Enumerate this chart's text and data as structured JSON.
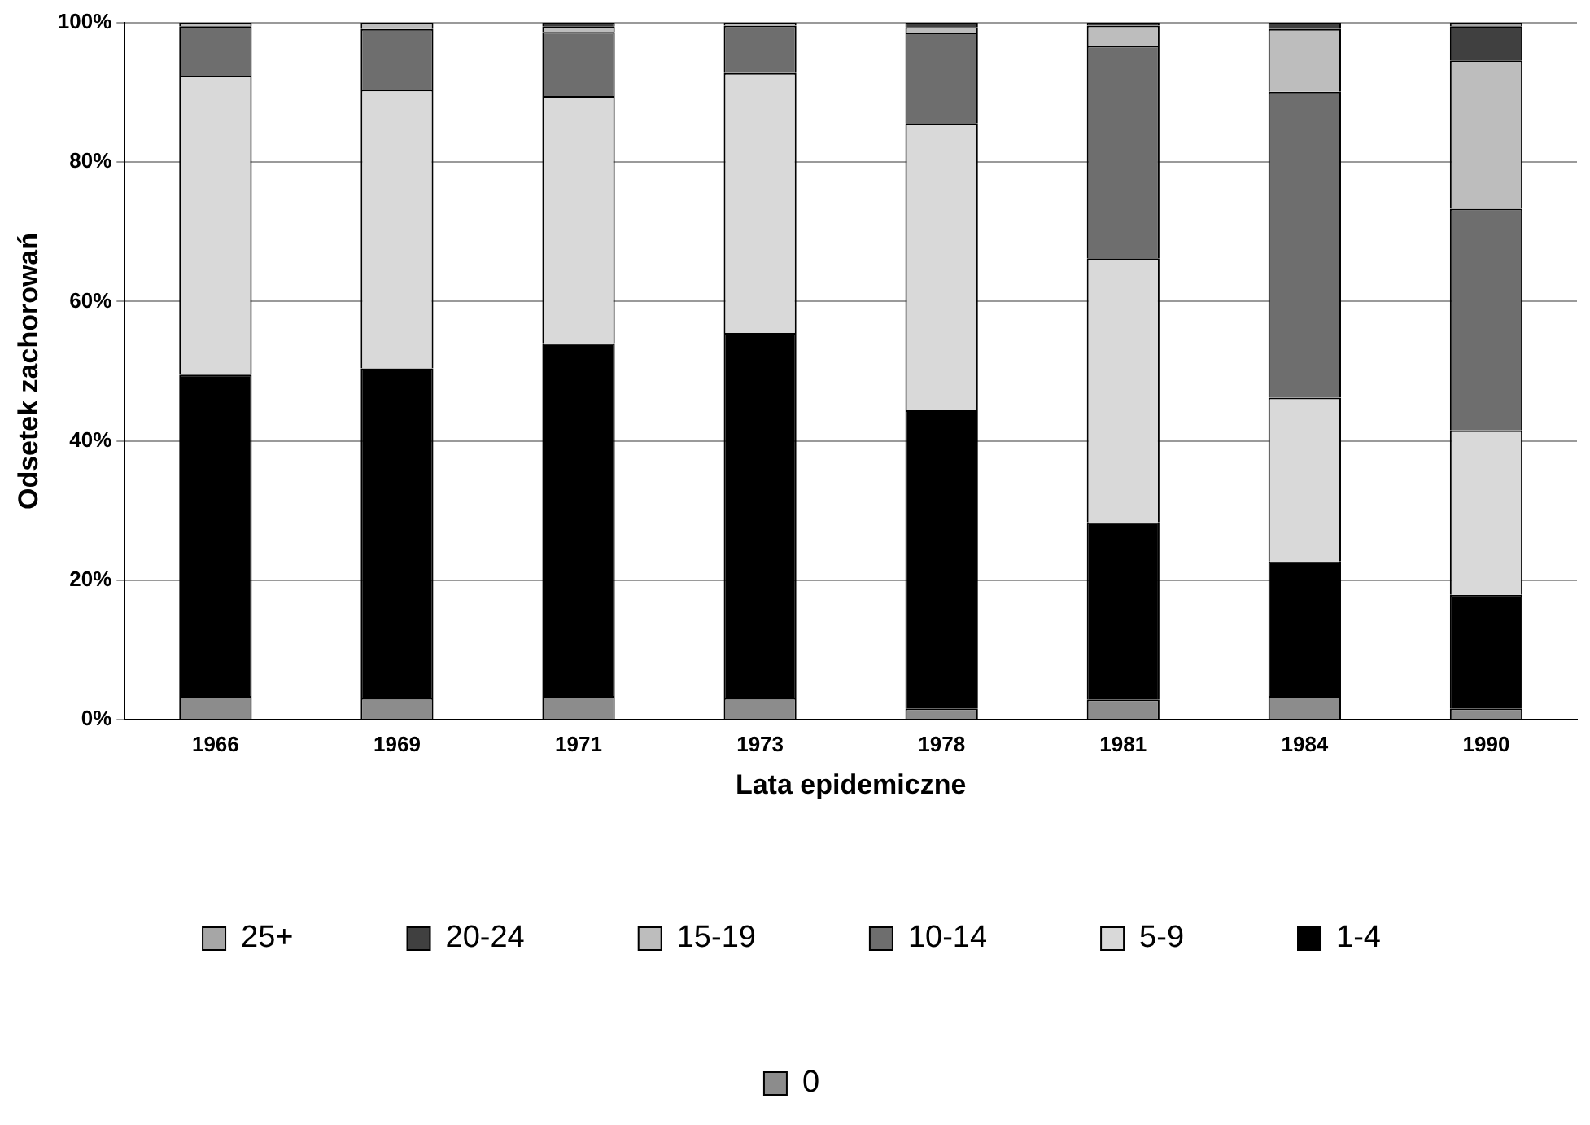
{
  "chart_data": {
    "type": "bar",
    "stacked": true,
    "xlabel": "Lata epidemiczne",
    "ylabel": "Odsetek zachorowań",
    "categories": [
      "1966",
      "1969",
      "1971",
      "1973",
      "1978",
      "1981",
      "1984",
      "1990"
    ],
    "series": [
      {
        "name": "0",
        "color": "#8c8c8c",
        "values": [
          3.4,
          3.1,
          3.4,
          3.1,
          1.6,
          2.9,
          3.4,
          1.6
        ]
      },
      {
        "name": "1-4",
        "color": "#000000",
        "values": [
          46.1,
          47.3,
          50.6,
          52.4,
          42.8,
          25.4,
          19.3,
          16.3
        ]
      },
      {
        "name": "5-9",
        "color": "#d9d9d9",
        "values": [
          42.9,
          40,
          35.5,
          37.3,
          41.2,
          37.9,
          23.5,
          23.6
        ]
      },
      {
        "name": "10-14",
        "color": "#6e6e6e",
        "values": [
          7.1,
          8.7,
          9.2,
          6.8,
          13,
          30.5,
          43.9,
          31.8
        ]
      },
      {
        "name": "15-19",
        "color": "#bdbdbd",
        "values": [
          0.5,
          0.9,
          0.8,
          0.4,
          0.8,
          2.9,
          9,
          21.3
        ]
      },
      {
        "name": "20-24",
        "color": "#404040",
        "values": [
          null,
          null,
          0.5,
          null,
          0.6,
          0.4,
          0.9,
          4.9
        ]
      },
      {
        "name": "25+",
        "color": "#a6a6a6",
        "values": [
          null,
          null,
          null,
          null,
          null,
          null,
          null,
          0.5
        ]
      }
    ],
    "ylim": [
      0,
      100
    ],
    "yticks": [
      {
        "value": 0,
        "label": "0%"
      },
      {
        "value": 20,
        "label": "20%"
      },
      {
        "value": 40,
        "label": "40%"
      },
      {
        "value": 60,
        "label": "60%"
      },
      {
        "value": 80,
        "label": "80%"
      },
      {
        "value": 100,
        "label": "100%"
      }
    ],
    "grid": "y",
    "legend": "bottom"
  }
}
